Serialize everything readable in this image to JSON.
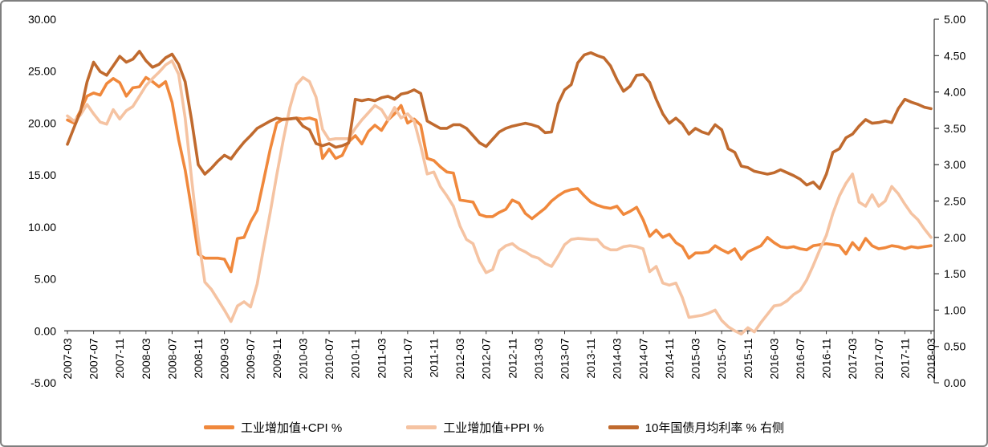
{
  "frame": {
    "background": "#FFFFFF",
    "border_color": "#7F7F7F",
    "text_color": "#000000"
  },
  "chart_data": {
    "type": "line",
    "title": "",
    "grid": false,
    "legend_position": "bottom",
    "x_start": "2007-03",
    "x_end": "2018-03",
    "x_tick_every": 4,
    "x_tick_labels": [
      "2007-03",
      "2007-07",
      "2007-11",
      "2008-03",
      "2008-07",
      "2008-11",
      "2009-03",
      "2009-07",
      "2009-11",
      "2010-03",
      "2010-07",
      "2010-11",
      "2011-03",
      "2011-07",
      "2011-11",
      "2012-03",
      "2012-07",
      "2012-11",
      "2013-03",
      "2013-07",
      "2013-11",
      "2014-03",
      "2014-07",
      "2014-11",
      "2015-03",
      "2015-07",
      "2015-11",
      "2016-03",
      "2016-07",
      "2016-11",
      "2017-03",
      "2017-07",
      "2017-11",
      "2018-03"
    ],
    "left_axis": {
      "min": -5,
      "max": 30,
      "step": 5,
      "tick_labels": [
        "30.00",
        "25.00",
        "20.00",
        "15.00",
        "10.00",
        "5.00",
        "0.00",
        "-5.00"
      ]
    },
    "right_axis": {
      "min": 0,
      "max": 5,
      "step": 0.5,
      "tick_labels": [
        "5.00",
        "4.50",
        "4.00",
        "3.50",
        "3.00",
        "2.50",
        "2.00",
        "1.50",
        "1.00",
        "0.50",
        "0.00"
      ]
    },
    "series": [
      {
        "name": "工业增加值+CPI %",
        "axis": "left",
        "color": "#F0883C",
        "values": [
          20.3,
          20.0,
          21.2,
          22.6,
          22.9,
          22.7,
          23.8,
          24.3,
          23.9,
          22.6,
          23.4,
          23.5,
          24.4,
          24.0,
          23.5,
          24.0,
          22.0,
          18.4,
          15.5,
          11.6,
          7.4,
          7.0,
          7.0,
          7.0,
          6.9,
          5.7,
          8.9,
          9.0,
          10.5,
          11.6,
          14.5,
          17.5,
          20.0,
          20.4,
          20.4,
          20.5,
          20.4,
          20.5,
          20.3,
          16.6,
          17.5,
          16.6,
          16.9,
          18.2,
          18.8,
          18.0,
          19.2,
          19.8,
          19.3,
          20.3,
          20.9,
          21.7,
          20.0,
          20.4,
          19.8,
          16.6,
          16.4,
          15.8,
          15.3,
          15.2,
          12.6,
          12.5,
          12.4,
          11.2,
          11.0,
          11.0,
          11.4,
          11.7,
          12.6,
          12.3,
          11.3,
          10.8,
          11.3,
          11.8,
          12.5,
          13.0,
          13.4,
          13.6,
          13.7,
          13.0,
          12.4,
          12.1,
          11.9,
          11.8,
          12.0,
          11.2,
          11.5,
          11.9,
          10.7,
          9.1,
          9.7,
          9.0,
          9.3,
          8.5,
          8.1,
          7.0,
          7.5,
          7.5,
          7.6,
          8.2,
          7.8,
          7.5,
          7.9,
          6.9,
          7.6,
          7.9,
          8.2,
          9.0,
          8.5,
          8.1,
          8.0,
          8.1,
          7.9,
          7.8,
          8.2,
          8.3,
          8.4,
          8.3,
          8.2,
          7.4,
          8.5,
          7.8,
          8.9,
          8.2,
          7.9,
          8.0,
          8.2,
          8.1,
          7.9,
          8.1,
          8.0,
          8.1,
          8.2
        ]
      },
      {
        "name": "工业增加值+PPI %",
        "axis": "left",
        "color": "#F5C3A2",
        "values": [
          20.7,
          20.2,
          20.8,
          21.8,
          20.9,
          20.1,
          19.9,
          21.3,
          20.4,
          21.2,
          21.6,
          22.6,
          23.6,
          24.3,
          24.9,
          25.6,
          26.0,
          24.7,
          20.5,
          14.5,
          9.0,
          4.7,
          4.0,
          3.0,
          2.0,
          0.9,
          2.4,
          2.8,
          2.3,
          4.5,
          8.0,
          11.4,
          15.0,
          18.4,
          21.5,
          23.7,
          24.4,
          24.0,
          22.5,
          19.4,
          18.4,
          18.5,
          18.5,
          18.5,
          19.5,
          20.3,
          21.0,
          21.7,
          21.3,
          20.3,
          21.5,
          20.5,
          20.9,
          20.2,
          17.8,
          15.1,
          15.3,
          13.9,
          13.0,
          12.0,
          10.1,
          8.8,
          8.4,
          6.7,
          5.6,
          5.9,
          7.7,
          8.2,
          8.4,
          7.9,
          7.6,
          7.2,
          7.0,
          6.5,
          6.2,
          7.2,
          8.3,
          8.8,
          8.9,
          8.85,
          8.8,
          8.8,
          8.1,
          7.8,
          7.8,
          8.1,
          8.2,
          8.1,
          7.9,
          5.7,
          6.2,
          4.6,
          4.4,
          4.6,
          3.2,
          1.3,
          1.4,
          1.5,
          1.7,
          2.0,
          1.0,
          0.4,
          0.0,
          -0.3,
          0.3,
          -0.1,
          0.8,
          1.6,
          2.4,
          2.5,
          2.9,
          3.5,
          3.9,
          4.9,
          6.3,
          7.8,
          9.2,
          11.3,
          13.0,
          14.2,
          15.1,
          12.4,
          12.0,
          13.1,
          12.0,
          12.5,
          13.9,
          13.2,
          12.2,
          11.3,
          10.7,
          9.8,
          9.0
        ]
      },
      {
        "name": "10年国债月均利率 % 右侧",
        "axis": "right",
        "color": "#C06A2E",
        "values": [
          3.28,
          3.51,
          3.73,
          4.14,
          4.41,
          4.28,
          4.23,
          4.36,
          4.49,
          4.41,
          4.45,
          4.56,
          4.43,
          4.34,
          4.38,
          4.47,
          4.52,
          4.38,
          4.14,
          3.6,
          3.0,
          2.87,
          2.95,
          3.05,
          3.13,
          3.08,
          3.2,
          3.31,
          3.4,
          3.5,
          3.55,
          3.6,
          3.64,
          3.62,
          3.63,
          3.64,
          3.53,
          3.48,
          3.29,
          3.26,
          3.29,
          3.24,
          3.26,
          3.3,
          3.9,
          3.88,
          3.9,
          3.88,
          3.92,
          3.94,
          3.9,
          3.97,
          3.99,
          4.03,
          3.98,
          3.6,
          3.55,
          3.5,
          3.5,
          3.55,
          3.55,
          3.5,
          3.4,
          3.3,
          3.25,
          3.35,
          3.45,
          3.5,
          3.53,
          3.55,
          3.57,
          3.55,
          3.52,
          3.44,
          3.45,
          3.84,
          4.03,
          4.1,
          4.4,
          4.51,
          4.54,
          4.5,
          4.47,
          4.36,
          4.17,
          4.01,
          4.08,
          4.23,
          4.24,
          4.13,
          3.9,
          3.7,
          3.57,
          3.64,
          3.56,
          3.42,
          3.5,
          3.45,
          3.42,
          3.55,
          3.48,
          3.22,
          3.17,
          2.98,
          2.96,
          2.91,
          2.89,
          2.87,
          2.89,
          2.93,
          2.89,
          2.85,
          2.8,
          2.72,
          2.76,
          2.67,
          2.87,
          3.17,
          3.22,
          3.37,
          3.42,
          3.53,
          3.62,
          3.57,
          3.58,
          3.6,
          3.58,
          3.77,
          3.9,
          3.86,
          3.83,
          3.79,
          3.77
        ]
      }
    ]
  }
}
